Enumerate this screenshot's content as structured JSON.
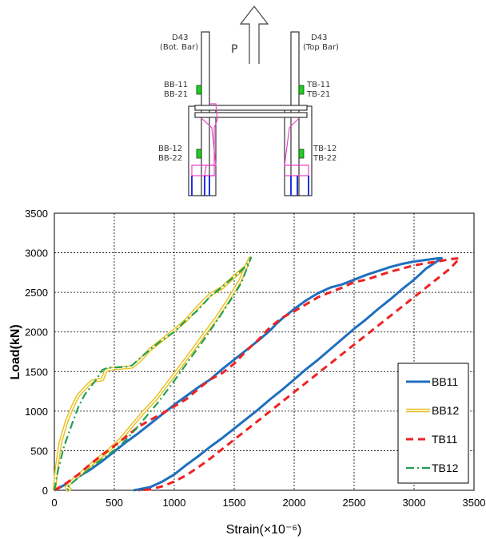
{
  "diagram": {
    "left_bar_label": [
      "D43",
      "(Bot. Bar)"
    ],
    "right_bar_label": [
      "D43",
      "(Top Bar)"
    ],
    "load_label": "P",
    "gauges_left_upper": [
      "BB-11",
      "BB-21"
    ],
    "gauges_right_upper": [
      "TB-11",
      "TB-21"
    ],
    "gauges_left_lower": [
      "BB-12",
      "BB-22"
    ],
    "gauges_right_lower": [
      "TB-12",
      "TB-22"
    ],
    "colors": {
      "gauge": "#22cc22",
      "plate": "#ee44cc",
      "bolt": "#2233dd",
      "steel": "#333333"
    }
  },
  "chart_data": {
    "type": "line",
    "xlabel": "Strain(×10⁻⁶)",
    "ylabel": "Load(kN)",
    "xlim": [
      0,
      3500
    ],
    "ylim": [
      0,
      3500
    ],
    "xticks": [
      "0",
      "500",
      "1000",
      "1500",
      "2000",
      "2500",
      "3000",
      "3500"
    ],
    "yticks": [
      "0",
      "500",
      "1000",
      "1500",
      "2000",
      "2500",
      "3000",
      "3500"
    ],
    "grid": true,
    "legend_position": "lower-right",
    "series": [
      {
        "name": "BB11",
        "color": "#1f6fbf",
        "style": "solid",
        "x": [
          0,
          100,
          200,
          300,
          400,
          500,
          600,
          700,
          800,
          900,
          1000,
          1100,
          1200,
          1300,
          1400,
          1500,
          1600,
          1700,
          1800,
          1850,
          1900,
          2000,
          2100,
          2200,
          2300,
          2400,
          2500,
          2600,
          2700,
          2800,
          2900,
          3000,
          3100,
          3200,
          3230,
          3100,
          3000,
          2900,
          2800,
          2700,
          2600,
          2500,
          2400,
          2300,
          2200,
          2100,
          2000,
          1900,
          1800,
          1700,
          1600,
          1500,
          1400,
          1300,
          1200,
          1100,
          1000,
          900,
          800,
          700,
          660
        ],
        "y": [
          0,
          80,
          170,
          260,
          370,
          490,
          610,
          720,
          840,
          960,
          1080,
          1190,
          1300,
          1400,
          1530,
          1650,
          1770,
          1890,
          2020,
          2100,
          2170,
          2290,
          2400,
          2490,
          2560,
          2600,
          2660,
          2720,
          2770,
          2820,
          2860,
          2890,
          2910,
          2930,
          2930,
          2800,
          2660,
          2540,
          2410,
          2290,
          2160,
          2040,
          1910,
          1780,
          1650,
          1530,
          1400,
          1270,
          1150,
          1020,
          900,
          780,
          660,
          550,
          430,
          320,
          200,
          110,
          40,
          10,
          0
        ]
      },
      {
        "name": "BB12",
        "color": "#e8c020",
        "style": "double",
        "x": [
          0,
          20,
          50,
          100,
          150,
          200,
          250,
          300,
          320,
          400,
          430,
          500,
          600,
          650,
          700,
          800,
          900,
          1000,
          1100,
          1200,
          1300,
          1400,
          1500,
          1600,
          1630,
          1550,
          1450,
          1350,
          1250,
          1150,
          1050,
          950,
          850,
          750,
          650,
          550,
          450,
          350,
          250,
          150,
          100,
          130,
          100
        ],
        "y": [
          0,
          300,
          600,
          860,
          1050,
          1200,
          1280,
          1360,
          1380,
          1400,
          1520,
          1540,
          1550,
          1560,
          1620,
          1780,
          1900,
          2020,
          2150,
          2320,
          2470,
          2560,
          2700,
          2830,
          2930,
          2650,
          2400,
          2170,
          1970,
          1760,
          1560,
          1360,
          1160,
          1000,
          820,
          640,
          500,
          380,
          250,
          120,
          40,
          15,
          0
        ]
      },
      {
        "name": "TB11",
        "color": "#ee2222",
        "style": "dashed",
        "x": [
          0,
          100,
          200,
          300,
          400,
          500,
          600,
          700,
          800,
          900,
          1000,
          1100,
          1200,
          1300,
          1400,
          1500,
          1600,
          1700,
          1800,
          1900,
          2000,
          2100,
          2200,
          2300,
          2400,
          2500,
          2600,
          2700,
          2800,
          2900,
          3000,
          3100,
          3200,
          3300,
          3380,
          3300,
          3200,
          3100,
          3000,
          2900,
          2800,
          2700,
          2600,
          2500,
          2400,
          2300,
          2200,
          2100,
          2000,
          1900,
          1800,
          1700,
          1600,
          1500,
          1400,
          1300,
          1200,
          1100,
          1000,
          900,
          800,
          700
        ],
        "y": [
          0,
          90,
          200,
          330,
          450,
          560,
          680,
          800,
          890,
          970,
          1060,
          1150,
          1280,
          1400,
          1480,
          1600,
          1760,
          1900,
          2060,
          2180,
          2260,
          2350,
          2440,
          2500,
          2560,
          2630,
          2660,
          2710,
          2760,
          2800,
          2840,
          2870,
          2890,
          2920,
          2930,
          2800,
          2680,
          2560,
          2440,
          2320,
          2200,
          2080,
          1960,
          1840,
          1720,
          1600,
          1480,
          1360,
          1240,
          1120,
          1000,
          880,
          760,
          640,
          520,
          400,
          290,
          190,
          110,
          50,
          10,
          0
        ]
      },
      {
        "name": "TB12",
        "color": "#22a052",
        "style": "dashdot",
        "x": [
          0,
          30,
          80,
          150,
          200,
          250,
          300,
          350,
          400,
          450,
          500,
          600,
          650,
          700,
          800,
          900,
          1000,
          1100,
          1200,
          1300,
          1400,
          1500,
          1600,
          1640,
          1560,
          1460,
          1360,
          1260,
          1160,
          1060,
          960,
          860,
          760,
          660,
          560,
          460,
          360,
          260,
          160,
          100,
          120
        ],
        "y": [
          0,
          250,
          550,
          850,
          1050,
          1200,
          1300,
          1400,
          1520,
          1550,
          1550,
          1560,
          1580,
          1650,
          1780,
          1900,
          2000,
          2150,
          2280,
          2450,
          2570,
          2700,
          2830,
          2940,
          2620,
          2380,
          2150,
          1930,
          1720,
          1510,
          1300,
          1100,
          920,
          740,
          580,
          460,
          350,
          230,
          110,
          30,
          0
        ]
      }
    ]
  }
}
